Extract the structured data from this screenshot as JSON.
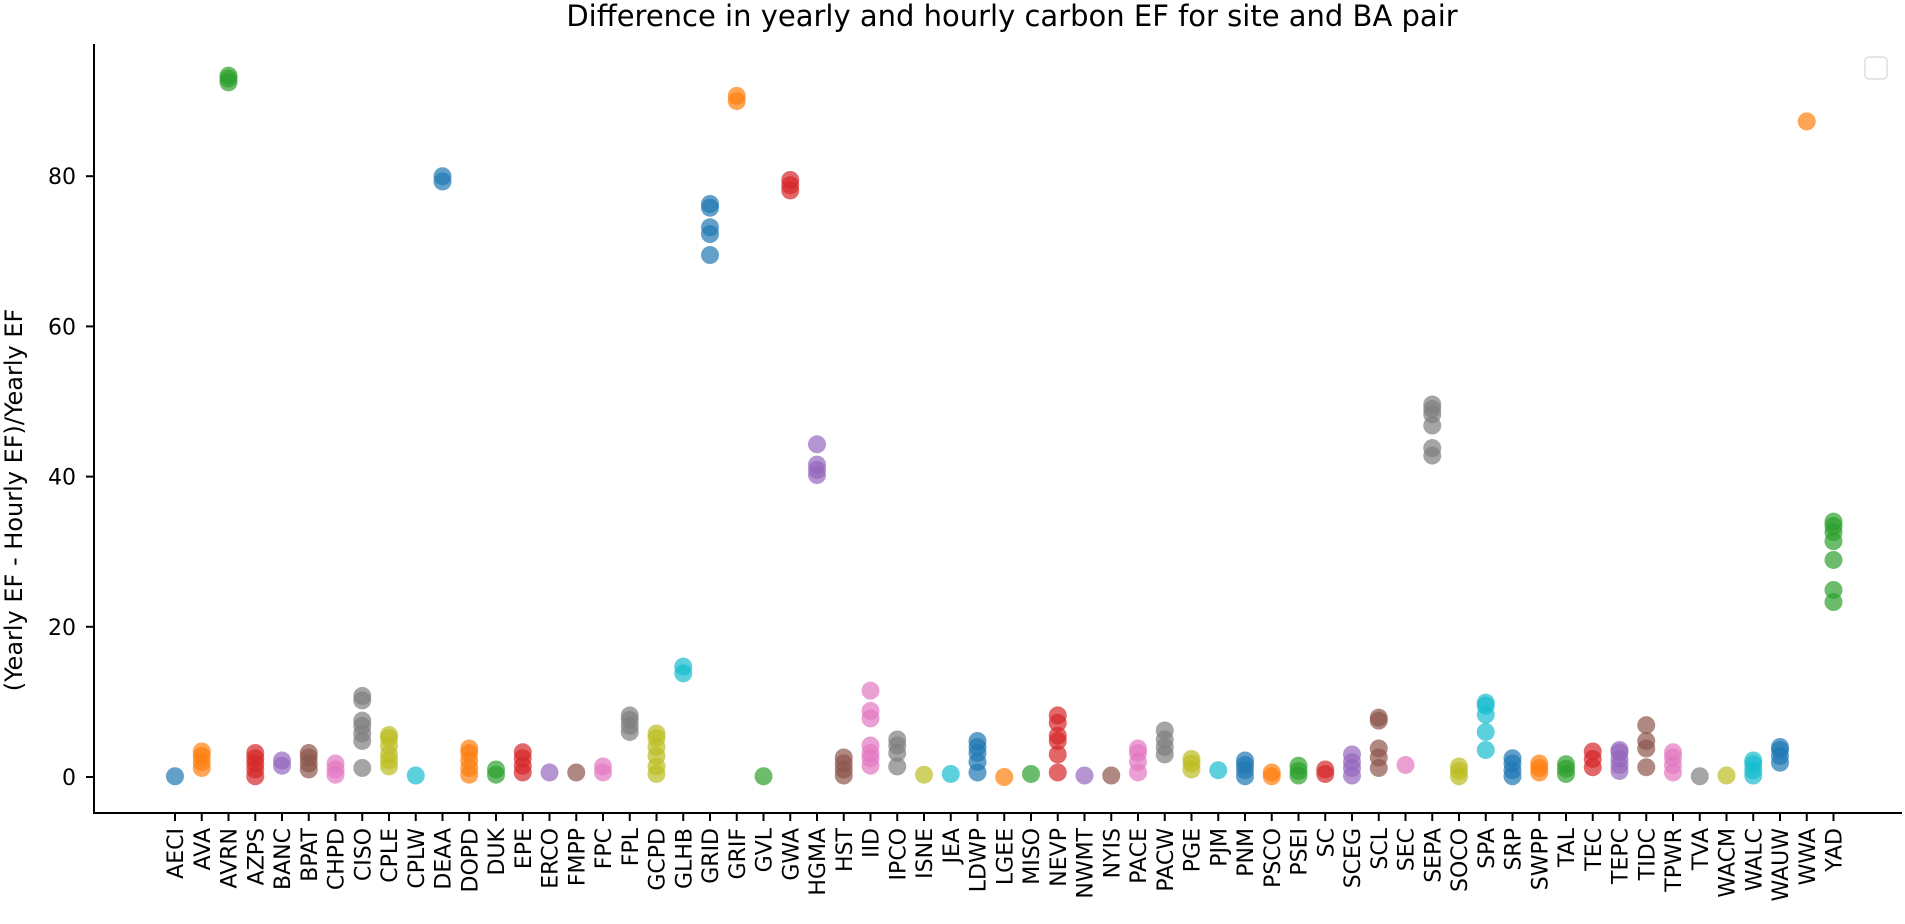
{
  "chart_data": {
    "type": "scatter",
    "title": "Difference in yearly and hourly carbon EF for site and BA pair",
    "xlabel": "",
    "ylabel": "(Yearly EF - Hourly EF)/Yearly EF",
    "ylim": [
      -4.5,
      98
    ],
    "yticks": [
      0,
      20,
      40,
      60,
      80
    ],
    "grid": false,
    "legend": "top-right (empty)",
    "categories": [
      "AECI",
      "AVA",
      "AVRN",
      "AZPS",
      "BANC",
      "BPAT",
      "CHPD",
      "CISO",
      "CPLE",
      "CPLW",
      "DEAA",
      "DOPD",
      "DUK",
      "EPE",
      "ERCO",
      "FMPP",
      "FPC",
      "FPL",
      "GCPD",
      "GLHB",
      "GRID",
      "GRIF",
      "GVL",
      "GWA",
      "HGMA",
      "HST",
      "IID",
      "IPCO",
      "ISNE",
      "JEA",
      "LDWP",
      "LGEE",
      "MISO",
      "NEVP",
      "NWMT",
      "NYIS",
      "PACE",
      "PACW",
      "PGE",
      "PJM",
      "PNM",
      "PSCO",
      "PSEI",
      "SC",
      "SCEG",
      "SCL",
      "SEC",
      "SEPA",
      "SOCO",
      "SPA",
      "SRP",
      "SWPP",
      "TAL",
      "TEC",
      "TEPC",
      "TIDC",
      "TPWR",
      "TVA",
      "WACM",
      "WALC",
      "WAUW",
      "WWA",
      "YAD"
    ],
    "series": [
      {
        "name": "AECI",
        "color": "#1f77b4",
        "values": [
          0.1
        ]
      },
      {
        "name": "AVA",
        "color": "#ff7f0e",
        "values": [
          1.2,
          2.0,
          2.8,
          3.4
        ]
      },
      {
        "name": "AVRN",
        "color": "#2ca02c",
        "values": [
          92.5,
          93.0,
          93.4
        ]
      },
      {
        "name": "AZPS",
        "color": "#d62728",
        "values": [
          0.1,
          1.0,
          1.8,
          2.5,
          3.2
        ]
      },
      {
        "name": "BANC",
        "color": "#9467bd",
        "values": [
          1.5,
          2.2
        ]
      },
      {
        "name": "BPAT",
        "color": "#8c564b",
        "values": [
          1.0,
          1.8,
          2.6,
          3.2
        ]
      },
      {
        "name": "CHPD",
        "color": "#e377c2",
        "values": [
          0.3,
          1.0,
          1.8
        ]
      },
      {
        "name": "CISO",
        "color": "#7f7f7f",
        "values": [
          1.2,
          4.8,
          5.8,
          6.8,
          7.5,
          10.2,
          10.8
        ]
      },
      {
        "name": "CPLE",
        "color": "#bcbd22",
        "values": [
          1.4,
          2.2,
          3.0,
          4.2,
          5.2,
          5.6
        ]
      },
      {
        "name": "CPLW",
        "color": "#17becf",
        "values": [
          0.2
        ]
      },
      {
        "name": "DEAA",
        "color": "#1f77b4",
        "values": [
          79.3,
          80.0
        ]
      },
      {
        "name": "DOPD",
        "color": "#ff7f0e",
        "values": [
          0.3,
          1.2,
          2.2,
          3.2,
          3.8
        ]
      },
      {
        "name": "DUK",
        "color": "#2ca02c",
        "values": [
          0.3,
          1.0
        ]
      },
      {
        "name": "EPE",
        "color": "#d62728",
        "values": [
          0.6,
          1.5,
          2.5,
          3.3
        ]
      },
      {
        "name": "ERCO",
        "color": "#9467bd",
        "values": [
          0.6
        ]
      },
      {
        "name": "FMPP",
        "color": "#8c564b",
        "values": [
          0.6
        ]
      },
      {
        "name": "FPC",
        "color": "#e377c2",
        "values": [
          0.6,
          1.4
        ]
      },
      {
        "name": "FPL",
        "color": "#7f7f7f",
        "values": [
          6.0,
          6.8,
          7.6,
          8.2
        ]
      },
      {
        "name": "GCPD",
        "color": "#bcbd22",
        "values": [
          0.4,
          1.4,
          2.8,
          4.0,
          5.2,
          5.8
        ]
      },
      {
        "name": "GLHB",
        "color": "#17becf",
        "values": [
          13.8,
          14.7
        ]
      },
      {
        "name": "GRID",
        "color": "#1f77b4",
        "values": [
          69.5,
          72.3,
          73.2,
          75.8,
          76.3
        ]
      },
      {
        "name": "GRIF",
        "color": "#ff7f0e",
        "values": [
          90.0,
          90.7
        ]
      },
      {
        "name": "GVL",
        "color": "#2ca02c",
        "values": [
          0.1
        ]
      },
      {
        "name": "GWA",
        "color": "#d62728",
        "values": [
          78.1,
          78.8,
          79.5
        ]
      },
      {
        "name": "HGMA",
        "color": "#9467bd",
        "values": [
          40.2,
          40.9,
          41.6,
          44.3
        ]
      },
      {
        "name": "HST",
        "color": "#8c564b",
        "values": [
          0.2,
          1.0,
          1.8,
          2.6
        ]
      },
      {
        "name": "IID",
        "color": "#e377c2",
        "values": [
          1.5,
          2.5,
          3.2,
          4.2,
          7.8,
          8.8,
          11.5
        ]
      },
      {
        "name": "IPCO",
        "color": "#7f7f7f",
        "values": [
          1.4,
          3.2,
          4.2,
          5.0
        ]
      },
      {
        "name": "ISNE",
        "color": "#bcbd22",
        "values": [
          0.3
        ]
      },
      {
        "name": "JEA",
        "color": "#17becf",
        "values": [
          0.4
        ]
      },
      {
        "name": "LDWP",
        "color": "#1f77b4",
        "values": [
          0.6,
          2.0,
          3.2,
          4.0,
          4.8
        ]
      },
      {
        "name": "LGEE",
        "color": "#ff7f0e",
        "values": [
          0.0
        ]
      },
      {
        "name": "MISO",
        "color": "#2ca02c",
        "values": [
          0.4
        ]
      },
      {
        "name": "NEVP",
        "color": "#d62728",
        "values": [
          0.6,
          3.0,
          4.8,
          5.5,
          7.2,
          8.2
        ]
      },
      {
        "name": "NWMT",
        "color": "#9467bd",
        "values": [
          0.2
        ]
      },
      {
        "name": "NYIS",
        "color": "#8c564b",
        "values": [
          0.2
        ]
      },
      {
        "name": "PACE",
        "color": "#e377c2",
        "values": [
          0.6,
          2.0,
          3.2,
          3.8
        ]
      },
      {
        "name": "PACW",
        "color": "#7f7f7f",
        "values": [
          3.0,
          4.0,
          5.0,
          6.2
        ]
      },
      {
        "name": "PGE",
        "color": "#bcbd22",
        "values": [
          1.0,
          1.8,
          2.4
        ]
      },
      {
        "name": "PJM",
        "color": "#17becf",
        "values": [
          0.9
        ]
      },
      {
        "name": "PNM",
        "color": "#1f77b4",
        "values": [
          0.1,
          0.9,
          1.6,
          2.2
        ]
      },
      {
        "name": "PSCO",
        "color": "#ff7f0e",
        "values": [
          0.1,
          0.6
        ]
      },
      {
        "name": "PSEI",
        "color": "#2ca02c",
        "values": [
          0.2,
          0.8,
          1.5
        ]
      },
      {
        "name": "SC",
        "color": "#d62728",
        "values": [
          0.4,
          1.0
        ]
      },
      {
        "name": "SCEG",
        "color": "#9467bd",
        "values": [
          0.2,
          1.2,
          2.0,
          3.0
        ]
      },
      {
        "name": "SCL",
        "color": "#8c564b",
        "values": [
          1.2,
          2.6,
          3.8,
          7.5,
          7.9
        ]
      },
      {
        "name": "SEC",
        "color": "#e377c2",
        "values": [
          1.6
        ]
      },
      {
        "name": "SEPA",
        "color": "#7f7f7f",
        "values": [
          42.8,
          43.8,
          46.8,
          48.3,
          49.0,
          49.6
        ]
      },
      {
        "name": "SOCO",
        "color": "#bcbd22",
        "values": [
          0.1,
          0.8,
          1.4
        ]
      },
      {
        "name": "SPA",
        "color": "#17becf",
        "values": [
          3.6,
          6.0,
          8.3,
          9.5,
          9.9
        ]
      },
      {
        "name": "SRP",
        "color": "#1f77b4",
        "values": [
          0.1,
          0.9,
          1.8,
          2.5
        ]
      },
      {
        "name": "SWPP",
        "color": "#ff7f0e",
        "values": [
          0.6,
          1.2,
          1.8
        ]
      },
      {
        "name": "TAL",
        "color": "#2ca02c",
        "values": [
          0.4,
          1.1,
          1.7
        ]
      },
      {
        "name": "TEC",
        "color": "#d62728",
        "values": [
          1.3,
          2.4,
          3.4
        ]
      },
      {
        "name": "TEPC",
        "color": "#9467bd",
        "values": [
          0.8,
          1.6,
          2.4,
          3.3,
          3.6
        ]
      },
      {
        "name": "TIDC",
        "color": "#8c564b",
        "values": [
          1.3,
          3.8,
          4.8,
          6.9
        ]
      },
      {
        "name": "TPWR",
        "color": "#e377c2",
        "values": [
          0.6,
          1.6,
          2.6,
          3.3
        ]
      },
      {
        "name": "TVA",
        "color": "#7f7f7f",
        "values": [
          0.1
        ]
      },
      {
        "name": "WACM",
        "color": "#bcbd22",
        "values": [
          0.2
        ]
      },
      {
        "name": "WALC",
        "color": "#17becf",
        "values": [
          0.2,
          0.9,
          1.7,
          2.2
        ]
      },
      {
        "name": "WAUW",
        "color": "#1f77b4",
        "values": [
          1.9,
          2.8,
          3.6,
          4.0
        ]
      },
      {
        "name": "WWA",
        "color": "#ff7f0e",
        "values": [
          87.3
        ]
      },
      {
        "name": "YAD",
        "color": "#2ca02c",
        "values": [
          23.3,
          24.9,
          28.9,
          31.4,
          32.6,
          33.4,
          34.0
        ]
      }
    ]
  }
}
